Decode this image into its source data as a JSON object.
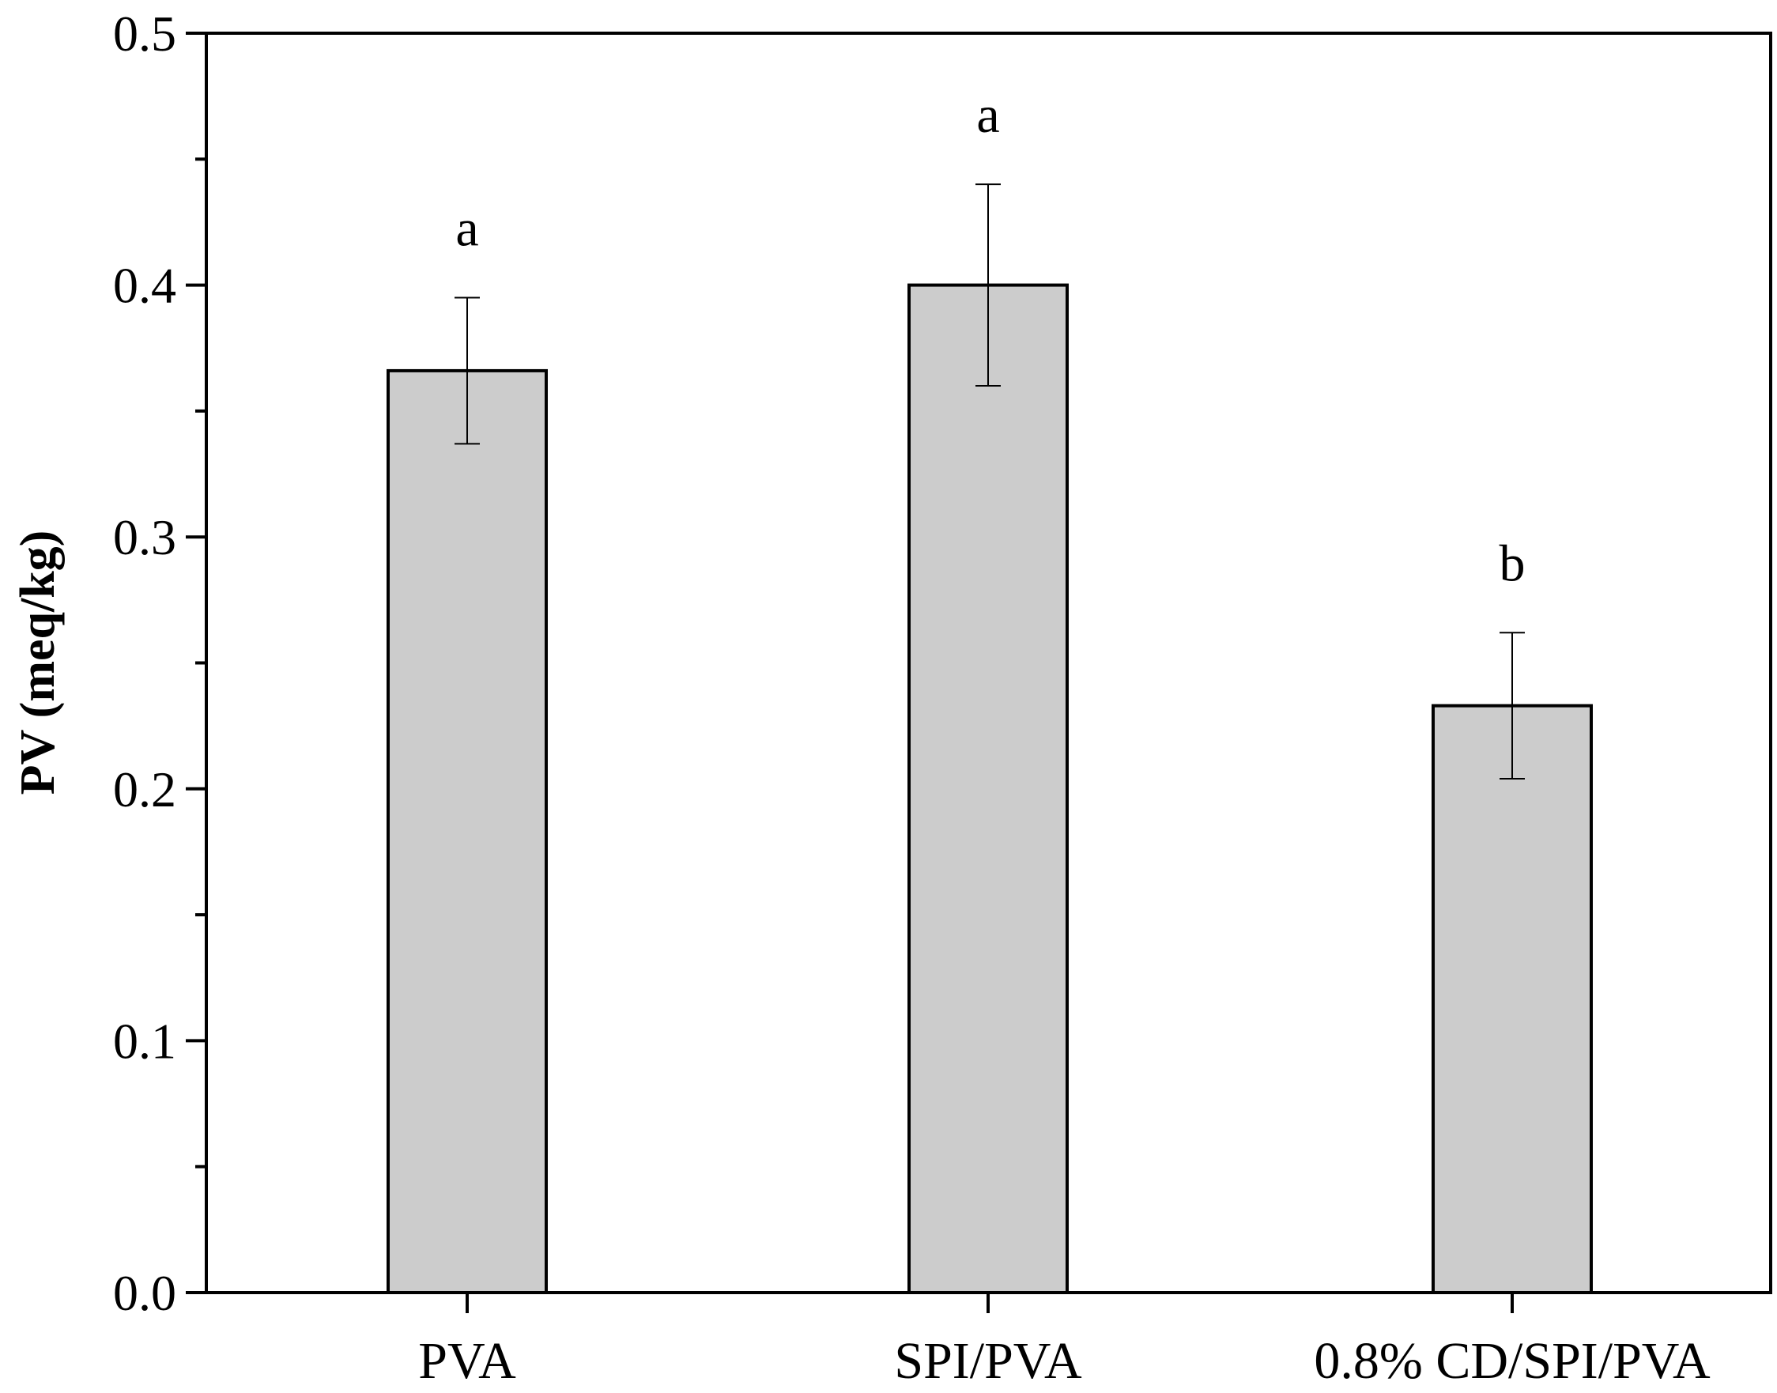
{
  "chart_data": {
    "type": "bar",
    "title": "",
    "xlabel": "",
    "ylabel": "PV (meq/kg)",
    "categories": [
      "PVA",
      "SPI/PVA",
      "0.8% CD/SPI/PVA"
    ],
    "values": [
      0.366,
      0.4,
      0.233
    ],
    "errors": [
      0.029,
      0.04,
      0.029
    ],
    "significance_letters": [
      "a",
      "a",
      "b"
    ],
    "ylim": [
      0.0,
      0.5
    ],
    "yticks": [
      "0.0",
      "0.1",
      "0.2",
      "0.3",
      "0.4",
      "0.5"
    ],
    "ytick_values": [
      0.0,
      0.1,
      0.2,
      0.3,
      0.4,
      0.5
    ],
    "grid": false,
    "legend": "none",
    "colors": {
      "bar_fill": "#cccccc",
      "bar_stroke": "#000000",
      "axis": "#000000"
    }
  }
}
